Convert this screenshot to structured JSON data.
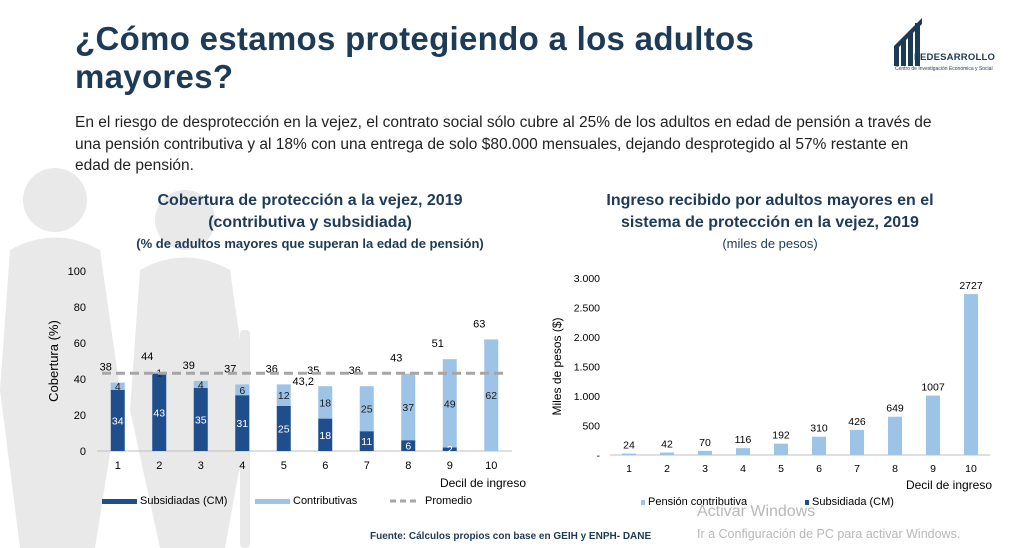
{
  "title": "¿Cómo estamos protegiendo a los adultos mayores?",
  "logo": {
    "name": "FEDESARROLLO",
    "tagline": "Centro de Investigación Económica y Social"
  },
  "intro": "En el riesgo de desprotección en la vejez, el contrato social sólo cubre al 25% de los adultos en edad de pensión a través de una pensión contributiva y al 18% con una entrega de solo $80.000 mensuales, dejando desprotegido al 57% restante en edad de pensión.",
  "left_chart": {
    "title_line1": "Cobertura de protección a la vejez, 2019",
    "title_line2": "(contributiva y subsidiada)",
    "subtitle": "(% de adultos mayores que superan la edad de pensión)"
  },
  "right_chart": {
    "title_line1": "Ingreso recibido por adultos mayores en el",
    "title_line2": "sistema de protección en la vejez, 2019",
    "subtitle": "(miles de pesos)"
  },
  "source": "Fuente: Cálculos propios con base en GEIH y ENPH- DANE",
  "watermark": {
    "line1": "Activar Windows",
    "line2": "Ir a Configuración de PC para activar Windows."
  },
  "colors": {
    "dark": "#1f4e8c",
    "light": "#9dc3e6",
    "average": "#a6a6a6",
    "heading": "#1d3a57"
  },
  "chart_data": [
    {
      "type": "bar",
      "stacked": true,
      "categories": [
        "1",
        "2",
        "3",
        "4",
        "5",
        "6",
        "7",
        "8",
        "9",
        "10"
      ],
      "series": [
        {
          "name": "Subsidiadas (CM)",
          "values": [
            34,
            43,
            35,
            31,
            25,
            18,
            11,
            6,
            2,
            null
          ],
          "labels": [
            "34",
            "43",
            "35",
            "31",
            "25",
            "18",
            "11",
            "6",
            "2",
            ""
          ]
        },
        {
          "name": "Contributivas",
          "values": [
            4,
            1,
            4,
            6,
            12,
            18,
            25,
            37,
            49,
            62
          ],
          "labels": [
            "4",
            "1",
            "4",
            "6",
            "12",
            "18",
            "25",
            "37",
            "49",
            "62"
          ]
        }
      ],
      "totals": [
        "38",
        "44",
        "39",
        "37",
        "36",
        "35",
        "36",
        "43",
        "51",
        "63"
      ],
      "average": {
        "name": "Promedio",
        "value": 43.2,
        "label": "43,2"
      },
      "xlabel": "Decil de ingreso",
      "ylabel": "Cobertura (%)",
      "ylim": [
        0,
        100
      ],
      "yticks": [
        "0",
        "20",
        "40",
        "60",
        "80",
        "100"
      ],
      "legend_position": "bottom"
    },
    {
      "type": "bar",
      "stacked": true,
      "categories": [
        "1",
        "2",
        "3",
        "4",
        "5",
        "6",
        "7",
        "8",
        "9",
        "10"
      ],
      "series": [
        {
          "name": "Pensión contributiva",
          "values": [
            24,
            42,
            70,
            116,
            192,
            310,
            426,
            649,
            1007,
            2727
          ]
        },
        {
          "name": "Subsidiada (CM)",
          "values": [
            null,
            null,
            null,
            null,
            null,
            null,
            null,
            null,
            null,
            null
          ]
        }
      ],
      "totals": [
        "24",
        "42",
        "70",
        "116",
        "192",
        "310",
        "426",
        "649",
        "1007",
        "2727"
      ],
      "xlabel": "Decil de ingreso",
      "ylabel": "Miles de pesos ($)",
      "ylim": [
        0,
        3000
      ],
      "yticks": [
        "-",
        "500",
        "1.000",
        "1.500",
        "2.000",
        "2.500",
        "3.000"
      ],
      "legend_position": "bottom"
    }
  ]
}
